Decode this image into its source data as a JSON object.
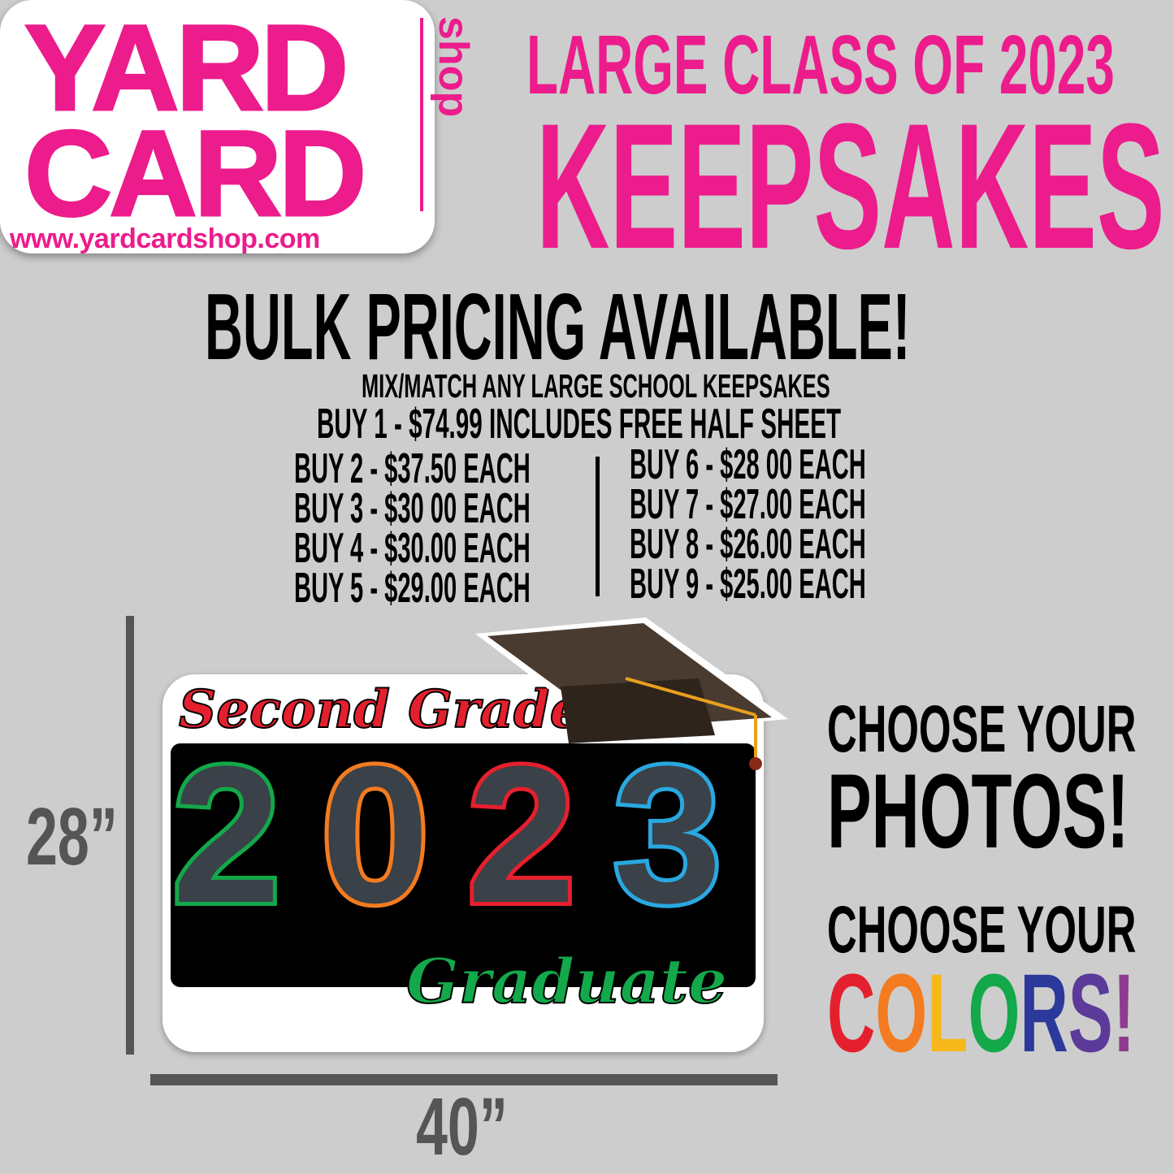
{
  "logo": {
    "line1": "YARD",
    "line2": "CARD",
    "side": "shop",
    "url": "www.yardcardshop.com"
  },
  "header": {
    "subtitle": "LARGE CLASS OF 2023",
    "title": "KEEPSAKES"
  },
  "pricing": {
    "headline": "BULK PRICING AVAILABLE!",
    "note": "MIX/MATCH ANY LARGE SCHOOL KEEPSAKES",
    "single": "BUY 1 - $74.99 INCLUDES FREE HALF SHEET",
    "left": [
      "BUY 2 - $37.50 EACH",
      "BUY 3 - $30 00 EACH",
      "BUY 4 - $30.00 EACH",
      "BUY 5 - $29.00 EACH"
    ],
    "right": [
      "BUY 6 - $28 00 EACH",
      "BUY 7 - $27.00 EACH",
      "BUY 8 - $26.00 EACH",
      "BUY 9 - $25.00 EACH"
    ]
  },
  "product": {
    "top_script": "Second Grade",
    "year": [
      "2",
      "0",
      "2",
      "3"
    ],
    "bottom_script": "Graduate",
    "height": "28”",
    "width": "40”",
    "digit_colors": [
      "#13a84a",
      "#f47b20",
      "#e5202e",
      "#29a8e0"
    ]
  },
  "callouts": {
    "line1": "CHOOSE YOUR",
    "line2": "PHOTOS!",
    "line3": "CHOOSE YOUR",
    "colors_letters": [
      "C",
      "O",
      "L",
      "O",
      "R",
      "S",
      "!"
    ],
    "colors_palette": [
      "#e5202e",
      "#f47b20",
      "#f6b81a",
      "#13a84a",
      "#2b3a9a",
      "#5b3a9a",
      "#8e3a8e"
    ]
  }
}
